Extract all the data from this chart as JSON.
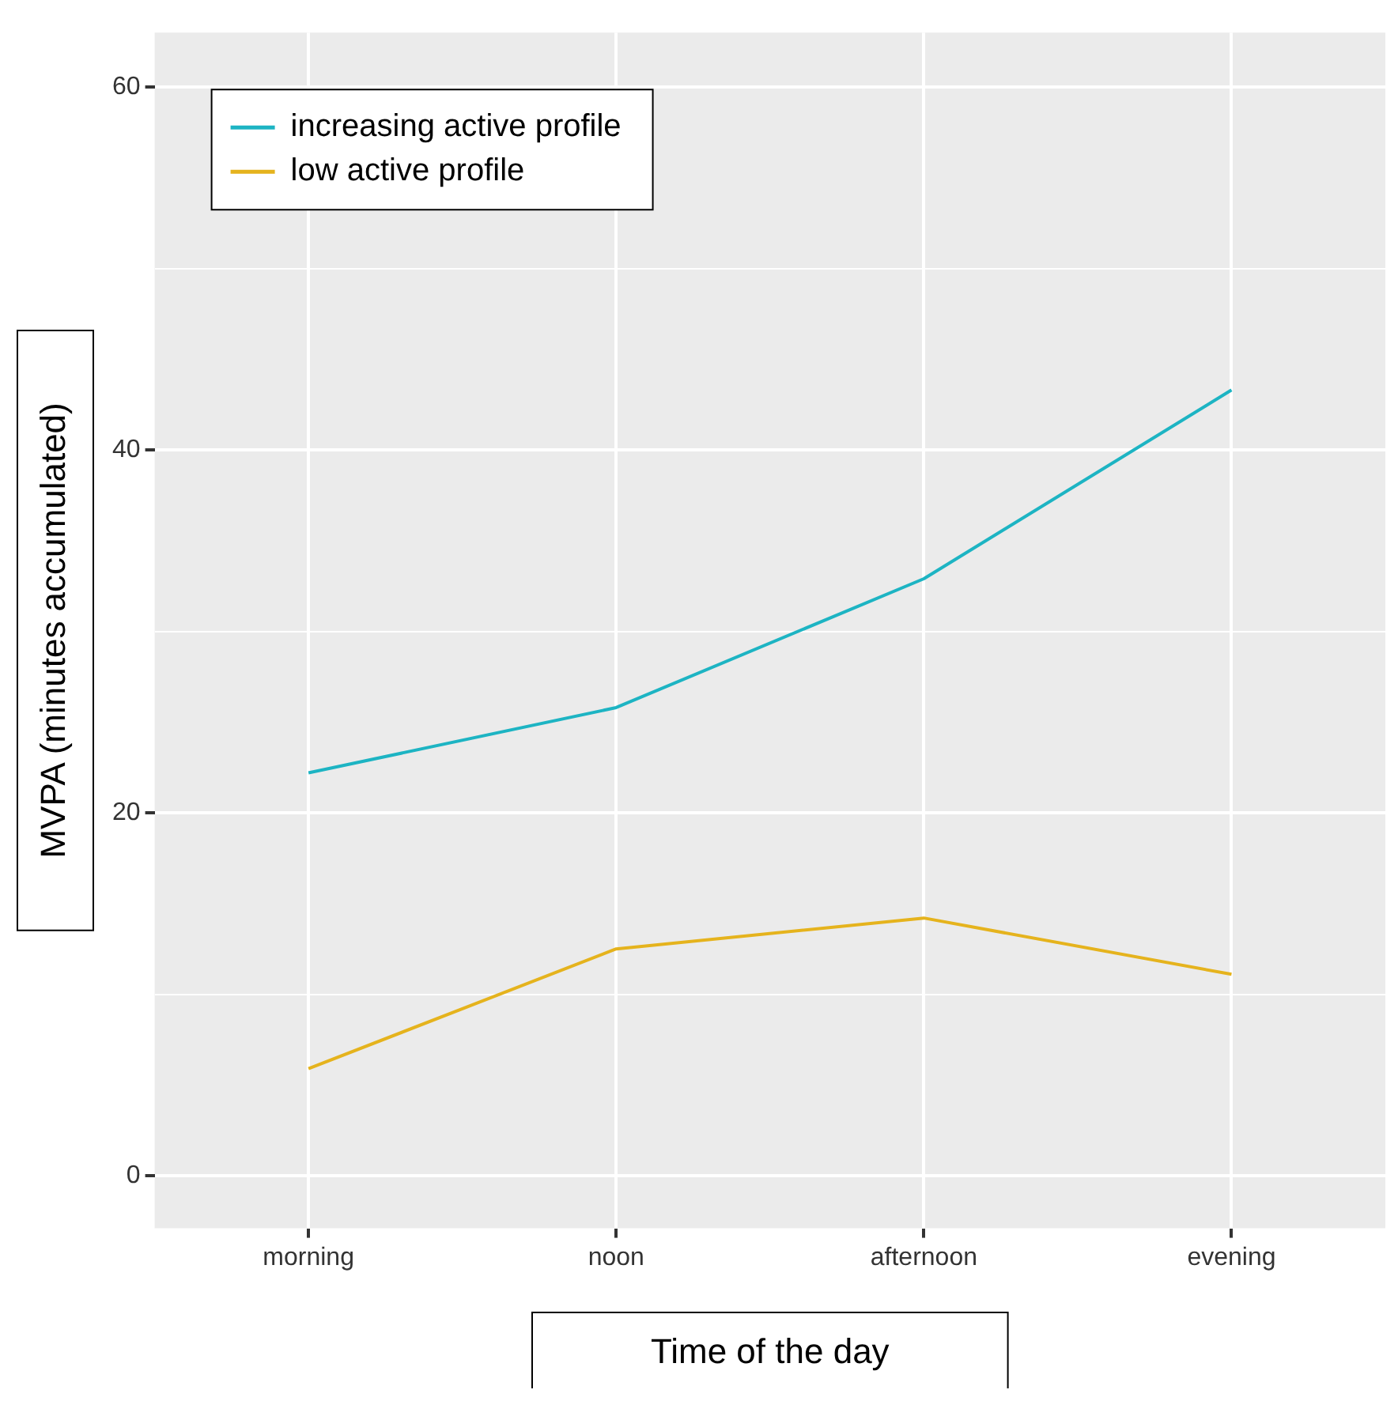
{
  "chart_data": {
    "type": "line",
    "xlabel": "Time of the day",
    "ylabel": "MVPA (minutes accumulated)",
    "categories": [
      "morning",
      "noon",
      "afternoon",
      "evening"
    ],
    "series": [
      {
        "name": "increasing active profile",
        "color": "#1db4c3",
        "values": [
          22.2,
          25.8,
          32.9,
          43.3
        ]
      },
      {
        "name": "low active profile",
        "color": "#e5b31d",
        "values": [
          5.9,
          12.5,
          14.2,
          11.1
        ]
      }
    ],
    "ylim": [
      -2.9,
      63
    ],
    "yticks": [
      0,
      {
        "value": 10,
        "label": null
      },
      20,
      {
        "value": 30,
        "label": null
      },
      40,
      {
        "value": 50,
        "label": null
      },
      60
    ],
    "grid": true,
    "legend": "top left",
    "marker": "none",
    "line_style": "solid"
  }
}
